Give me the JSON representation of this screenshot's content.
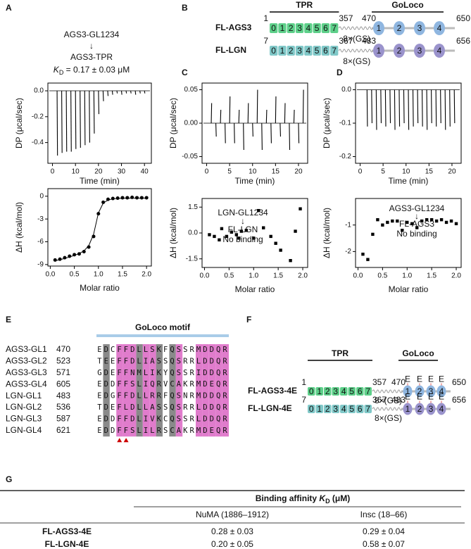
{
  "panel_labels": [
    "A",
    "B",
    "C",
    "D",
    "E",
    "F",
    "G"
  ],
  "binding_note": {
    "top": "AGS3-GL1234",
    "arrow": "↓",
    "bottom": "AGS3-TPR",
    "kd_symbol": "K",
    "kd_sub": "D",
    "kd_value": " = 0.17 ± 0.03 μM"
  },
  "chart_data": [
    {
      "type": "spike",
      "xlabel": "Time (min)",
      "ylabel": "DP (μcal/sec)",
      "x": [
        2,
        4,
        6,
        8,
        10,
        12,
        14,
        16,
        18,
        20,
        22,
        24,
        26,
        28,
        30,
        32,
        34,
        36,
        38,
        40
      ],
      "values": [
        -0.5,
        -0.48,
        -0.47,
        -0.47,
        -0.45,
        -0.44,
        -0.42,
        -0.4,
        -0.33,
        -0.18,
        -0.08,
        -0.04,
        -0.03,
        -0.02,
        -0.03,
        -0.02,
        -0.02,
        -0.03,
        -0.02,
        -0.02
      ],
      "xlim": [
        -2,
        43
      ],
      "xticks": [
        0,
        10,
        20,
        30,
        40
      ],
      "ylim": [
        -0.56,
        0.06
      ],
      "yticks": [
        {
          "value": 0,
          "label": "0.0"
        },
        -0.2,
        -0.4
      ]
    },
    {
      "type": "scatter",
      "marker": "circle",
      "xlabel": "Molar ratio",
      "ylabel": "ΔH (kcal/mol)",
      "x": [
        0.1,
        0.2,
        0.3,
        0.4,
        0.5,
        0.6,
        0.7,
        0.8,
        0.9,
        1.0,
        1.1,
        1.2,
        1.3,
        1.4,
        1.5,
        1.6,
        1.7,
        1.8,
        1.9,
        2.0
      ],
      "values": [
        -8.4,
        -8.3,
        -8.1,
        -7.9,
        -7.7,
        -7.6,
        -7.3,
        -6.7,
        -5.3,
        -2.3,
        -0.8,
        -0.4,
        -0.3,
        -0.25,
        -0.2,
        -0.2,
        -0.15,
        -0.2,
        -0.2,
        -0.2
      ],
      "fit_x": [
        0.1,
        0.2,
        0.3,
        0.4,
        0.5,
        0.6,
        0.7,
        0.8,
        0.9,
        1.0,
        1.1,
        1.2,
        1.3,
        1.4,
        1.5,
        1.6,
        1.7,
        1.8,
        1.9,
        2.0
      ],
      "fit_values": [
        -8.5,
        -8.35,
        -8.2,
        -8.0,
        -7.8,
        -7.55,
        -7.2,
        -6.5,
        -5.0,
        -2.2,
        -0.9,
        -0.5,
        -0.35,
        -0.3,
        -0.28,
        -0.26,
        -0.25,
        -0.25,
        -0.25,
        -0.25
      ],
      "xlim": [
        -0.05,
        2.1
      ],
      "xticks": [
        {
          "value": 0,
          "label": "0.0"
        },
        0.5,
        {
          "value": 1,
          "label": "1.0"
        },
        1.5,
        {
          "value": 2,
          "label": "2.0"
        }
      ],
      "ylim": [
        -9.2,
        1.0
      ],
      "yticks": [
        0,
        -3,
        -6,
        -9
      ]
    },
    {
      "type": "spike",
      "xlabel": "Time (min)",
      "ylabel": "DP (μcal/sec)",
      "x": [
        1,
        2,
        3,
        4,
        5,
        6,
        7,
        8,
        9,
        10,
        11,
        12,
        13,
        14,
        15,
        16,
        17,
        18,
        19,
        20,
        21
      ],
      "values": [
        0.03,
        -0.02,
        0.02,
        -0.03,
        0.04,
        -0.03,
        0.02,
        -0.04,
        0.03,
        -0.02,
        0.05,
        -0.04,
        0.02,
        -0.03,
        0.04,
        -0.02,
        0.03,
        -0.04,
        0.02,
        -0.03,
        0.05
      ],
      "xlim": [
        -1,
        22
      ],
      "xticks": [
        0,
        5,
        10,
        15,
        20
      ],
      "ylim": [
        -0.06,
        0.06
      ],
      "yticks": [
        0.05,
        {
          "value": 0,
          "label": "0.00"
        },
        -0.05
      ]
    },
    {
      "type": "scatter",
      "marker": "square",
      "xlabel": "Molar ratio",
      "ylabel": "ΔH (kcal/mol)",
      "x": [
        0.1,
        0.2,
        0.3,
        0.35,
        0.45,
        0.55,
        0.65,
        0.7,
        0.75,
        0.85,
        1.0,
        1.1,
        1.2,
        1.35,
        1.45,
        1.55,
        1.75,
        1.85,
        1.95
      ],
      "values": [
        -0.1,
        -0.2,
        -0.4,
        0.25,
        -0.2,
        0.05,
        -0.1,
        -0.3,
        0.1,
        0.15,
        -0.3,
        1.3,
        0.3,
        -0.2,
        -0.6,
        -1.0,
        -1.6,
        0.1,
        1.4
      ],
      "annotations": [
        "LGN-GL1234",
        "↓",
        "FL-LGN",
        "No binding"
      ],
      "xlim": [
        -0.05,
        2.1
      ],
      "xticks": [
        {
          "value": 0,
          "label": "0.0"
        },
        0.5,
        {
          "value": 1,
          "label": "1.0"
        },
        1.5,
        {
          "value": 2,
          "label": "2.0"
        }
      ],
      "ylim": [
        -2.0,
        2.0
      ],
      "yticks": [
        1.5,
        {
          "value": 0,
          "label": "0.0"
        },
        -1.5
      ]
    },
    {
      "type": "spike",
      "xlabel": "Time (min)",
      "ylabel": "DP (μcal/sec)",
      "x": [
        1.5,
        2.5,
        3.5,
        4.5,
        5.5,
        6.5,
        7.5,
        8.5,
        9.5,
        10.5,
        11.5,
        12.5,
        13.5,
        14.5,
        15.5,
        16.5,
        17.5,
        18.5,
        19.5,
        20.5
      ],
      "values": [
        -0.11,
        -0.1,
        -0.12,
        -0.1,
        -0.11,
        -0.1,
        -0.12,
        -0.11,
        -0.1,
        -0.12,
        -0.11,
        -0.1,
        -0.11,
        -0.12,
        -0.1,
        -0.11,
        -0.1,
        -0.12,
        -0.11,
        -0.1
      ],
      "xlim": [
        -1,
        22
      ],
      "xticks": [
        0,
        5,
        10,
        15,
        20
      ],
      "ylim": [
        -0.22,
        0.02
      ],
      "yticks": [
        {
          "value": 0,
          "label": "0.0"
        },
        -0.1,
        -0.2
      ]
    },
    {
      "type": "scatter",
      "marker": "square",
      "xlabel": "Molar ratio",
      "ylabel": "ΔH (kcal/mol)",
      "x": [
        0.1,
        0.2,
        0.3,
        0.4,
        0.5,
        0.6,
        0.7,
        0.8,
        0.9,
        1.0,
        1.1,
        1.2,
        1.3,
        1.4,
        1.5,
        1.6,
        1.7,
        1.8,
        1.9,
        2.0
      ],
      "values": [
        -2.1,
        -2.3,
        -1.35,
        -0.8,
        -1.0,
        -0.9,
        -0.85,
        -0.85,
        -1.2,
        -0.9,
        -0.95,
        -1.1,
        -0.85,
        -0.8,
        -0.8,
        -0.85,
        -0.8,
        -0.9,
        -0.85,
        -0.95
      ],
      "annotations": [
        "AGS3-GL1234",
        "↓",
        "FL-AGS3",
        "No binding"
      ],
      "xlim": [
        -0.05,
        2.1
      ],
      "xticks": [
        {
          "value": 0,
          "label": "0.0"
        },
        0.5,
        {
          "value": 1,
          "label": "1.0"
        },
        1.5,
        {
          "value": 2,
          "label": "2.0"
        }
      ],
      "ylim": [
        -2.6,
        0.0
      ],
      "yticks": [
        -1,
        -2
      ]
    }
  ],
  "domain_maps": [
    {
      "tpr": "TPR",
      "goloco": "GoLoco",
      "constructs": [
        {
          "name": "FL-AGS3",
          "start": "1",
          "tpr_end": "357",
          "go_start": "470",
          "end": "650",
          "linker": "8×(GS)",
          "repeats": [
            "0",
            "1",
            "2",
            "3",
            "4",
            "5",
            "6",
            "7"
          ],
          "motifs": [
            "1",
            "2",
            "3",
            "4"
          ]
        },
        {
          "name": "FL-LGN",
          "start": "7",
          "tpr_end": "367",
          "go_start": "483",
          "end": "656",
          "linker": "8×(GS)",
          "repeats": [
            "0",
            "1",
            "2",
            "3",
            "4",
            "5",
            "6",
            "7"
          ],
          "motifs": [
            "1",
            "2",
            "3",
            "4"
          ]
        }
      ]
    },
    {
      "tpr": "TPR",
      "goloco": "GoLoco",
      "mutation": "E",
      "constructs": [
        {
          "name": "FL-AGS3-4E",
          "start": "1",
          "tpr_end": "357",
          "go_start": "470",
          "end": "650",
          "linker": "8×(GS)",
          "repeats": [
            "0",
            "1",
            "2",
            "3",
            "4",
            "5",
            "6",
            "7"
          ],
          "motifs": [
            "1",
            "2",
            "3",
            "4"
          ]
        },
        {
          "name": "FL-LGN-4E",
          "start": "7",
          "tpr_end": "367",
          "go_start": "483",
          "end": "656",
          "linker": "8×(GS)",
          "repeats": [
            "0",
            "1",
            "2",
            "3",
            "4",
            "5",
            "6",
            "7"
          ],
          "motifs": [
            "1",
            "2",
            "3",
            "4"
          ]
        }
      ]
    }
  ],
  "alignment": {
    "title": "GoLoco motif",
    "rows": [
      {
        "name": "AGS3-GL1",
        "start": "470",
        "seq": "EDCFFDLLSKFQSSRMDDQR"
      },
      {
        "name": "AGS3-GL2",
        "start": "523",
        "seq": "TEEFFDLIASSQSRRLDDQR"
      },
      {
        "name": "AGS3-GL3",
        "start": "571",
        "seq": "GDEFFNMLIKYQSSRIDDQR"
      },
      {
        "name": "AGS3-GL4",
        "start": "605",
        "seq": "EDDFFSLIQRVCAKRMDEQR"
      },
      {
        "name": "LGN-GL1",
        "start": "483",
        "seq": "EDGFFDLLRRFQSNRMDDQR"
      },
      {
        "name": "LGN-GL2",
        "start": "536",
        "seq": "TDEFLDLLASSQSRRLDDQR"
      },
      {
        "name": "LGN-GL3",
        "start": "587",
        "seq": "EDDFFDLIVKCQSSRLDDQR"
      },
      {
        "name": "LGN-GL4",
        "start": "621",
        "seq": "EDDFFSLILRSCAKRMDEQR"
      }
    ]
  },
  "table": {
    "header": "Binding affinity ",
    "header_symbol": "K",
    "header_sub": "D",
    "header_unit": " (μM)",
    "columns": [
      "NuMA (1886–1912)",
      "Insc (18–66)"
    ],
    "rows": [
      [
        "FL-AGS3-4E",
        "0.28 ± 0.03",
        "0.29 ± 0.04"
      ],
      [
        "FL-LGN-4E",
        "0.20 ± 0.05",
        "0.58 ± 0.07"
      ]
    ]
  }
}
